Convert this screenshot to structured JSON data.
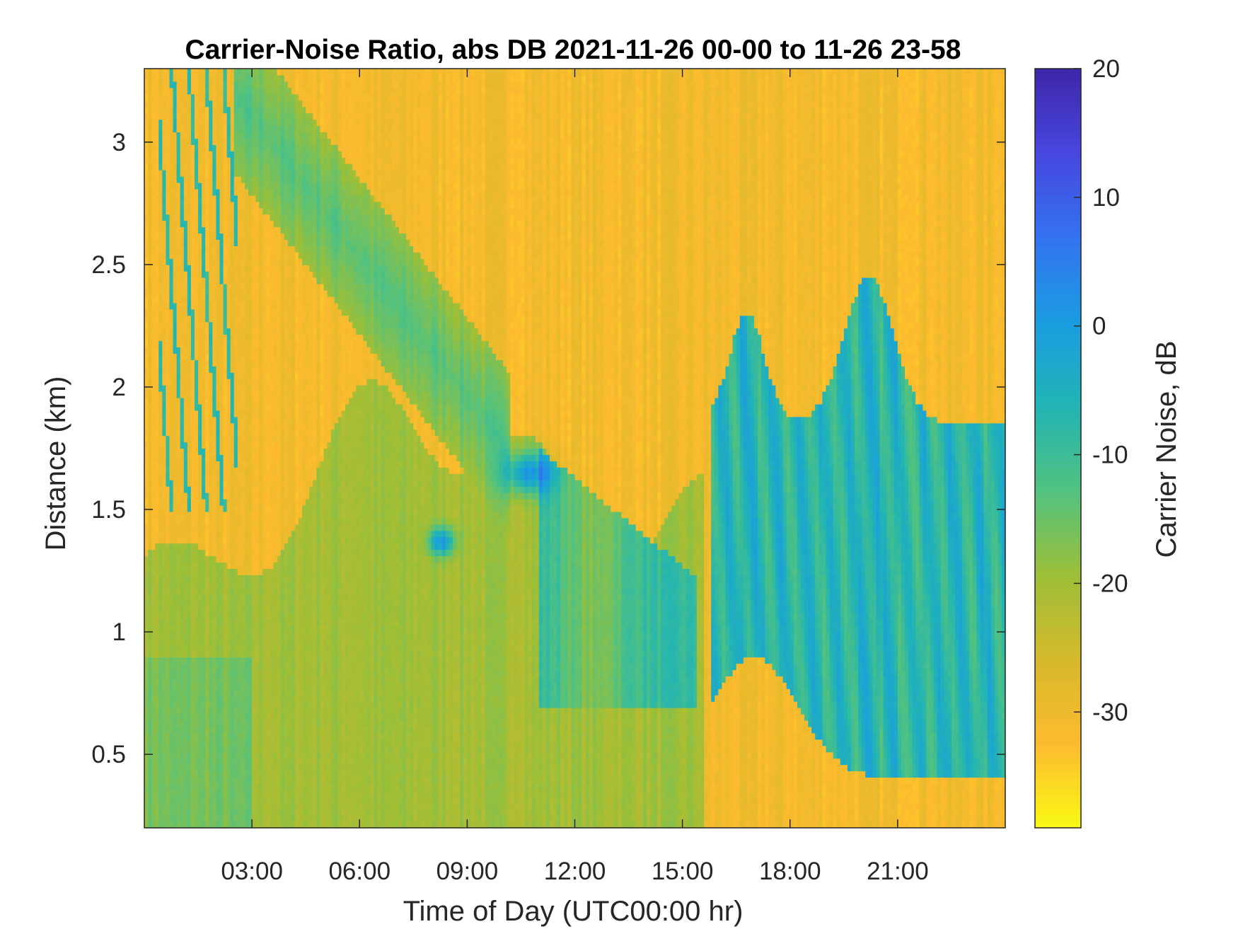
{
  "chart_data": {
    "type": "heatmap",
    "title": "Carrier-Noise Ratio, abs DB 2021-11-26 00-00 to 11-26 23-58",
    "xlabel": "Time of Day (UTC00:00 hr)",
    "ylabel": "Distance (km)",
    "x_ticks": [
      {
        "hour": 3,
        "label": "03:00"
      },
      {
        "hour": 6,
        "label": "06:00"
      },
      {
        "hour": 9,
        "label": "09:00"
      },
      {
        "hour": 12,
        "label": "12:00"
      },
      {
        "hour": 15,
        "label": "15:00"
      },
      {
        "hour": 18,
        "label": "18:00"
      },
      {
        "hour": 21,
        "label": "21:00"
      }
    ],
    "y_ticks": [
      {
        "km": 0.5,
        "label": "0.5"
      },
      {
        "km": 1,
        "label": "1"
      },
      {
        "km": 1.5,
        "label": "1.5"
      },
      {
        "km": 2,
        "label": "2"
      },
      {
        "km": 2.5,
        "label": "2.5"
      },
      {
        "km": 3,
        "label": "3"
      }
    ],
    "xlim": [
      0,
      24
    ],
    "ylim": [
      0.2,
      3.3
    ],
    "colorbar": {
      "label": "Carrier Noise, dB",
      "limits": [
        -39,
        20
      ],
      "ticks": [
        {
          "value": 20,
          "label": "20"
        },
        {
          "value": 10,
          "label": "10"
        },
        {
          "value": 0,
          "label": "0"
        },
        {
          "value": -10,
          "label": "-10"
        },
        {
          "value": -20,
          "label": "-20"
        },
        {
          "value": -30,
          "label": "-30"
        }
      ],
      "colormap": [
        "#fafa14",
        "#fdbb2f",
        "#d5b92b",
        "#9cbf38",
        "#52c27f",
        "#22b4b4",
        "#1a9ce0",
        "#3373f0",
        "#4747e0",
        "#3e26a8"
      ]
    },
    "background_value_db": -31,
    "approx_features": [
      {
        "kind": "low-level aerosol layer",
        "t_start": 0,
        "t_end": 15.6,
        "km_top": 1.45,
        "value_db": -20
      },
      {
        "kind": "rising layer",
        "t_start": 3,
        "t_end": 10,
        "km_low": 1.9,
        "km_high": 3.2,
        "value_db": -13
      },
      {
        "kind": "cloud returns",
        "t_start": 15.6,
        "t_end": 24,
        "km_low": 0.4,
        "km_high": 2.8,
        "value_db": -5
      },
      {
        "kind": "strong echo",
        "t": 10.7,
        "km": 1.65,
        "value_db": 13
      },
      {
        "kind": "strong echo",
        "t": 8.3,
        "km": 1.37,
        "value_db": 13
      }
    ]
  }
}
